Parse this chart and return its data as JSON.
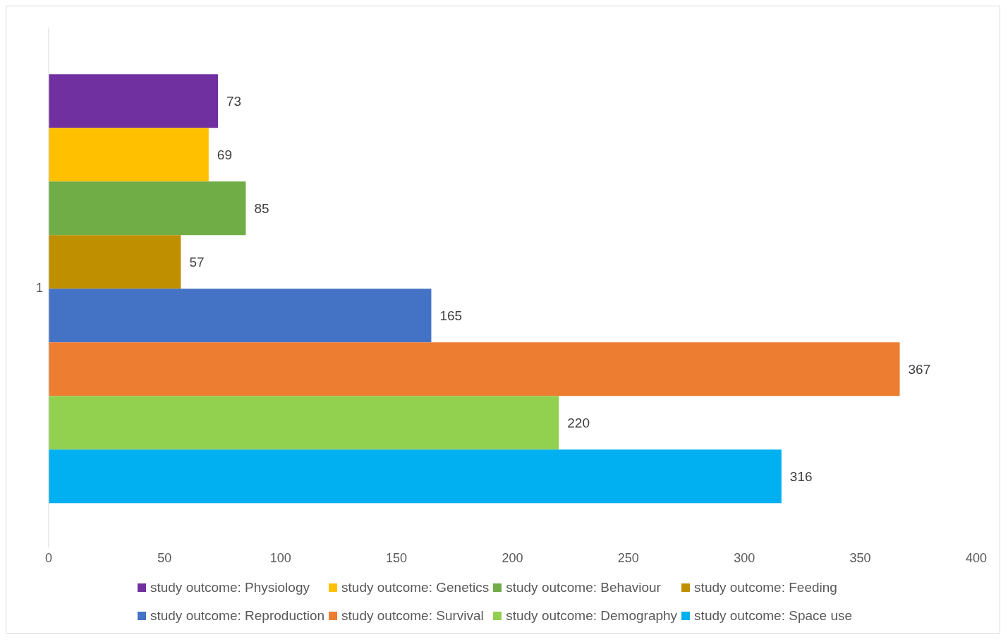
{
  "chart_data": {
    "type": "bar",
    "orientation": "horizontal",
    "categories": [
      "1"
    ],
    "series": [
      {
        "name": "study outcome: Physiology",
        "color": "#7030a0",
        "values": [
          73
        ]
      },
      {
        "name": "study outcome: Genetics",
        "color": "#ffc000",
        "values": [
          69
        ]
      },
      {
        "name": "study outcome: Behaviour",
        "color": "#70ad47",
        "values": [
          85
        ]
      },
      {
        "name": "study outcome: Feeding",
        "color": "#bf8f00",
        "values": [
          57
        ]
      },
      {
        "name": "study outcome: Reproduction",
        "color": "#4472c4",
        "values": [
          165
        ]
      },
      {
        "name": "study outcome: Survival",
        "color": "#ed7d31",
        "values": [
          367
        ]
      },
      {
        "name": "study outcome: Demography",
        "color": "#92d050",
        "values": [
          220
        ]
      },
      {
        "name": "study outcome: Space use",
        "color": "#00b0f0",
        "values": [
          316
        ]
      }
    ],
    "xlim": [
      0,
      400
    ],
    "xticks": [
      0,
      50,
      100,
      150,
      200,
      250,
      300,
      350,
      400
    ],
    "data_labels": true,
    "legend": "bottom",
    "grid": false
  }
}
